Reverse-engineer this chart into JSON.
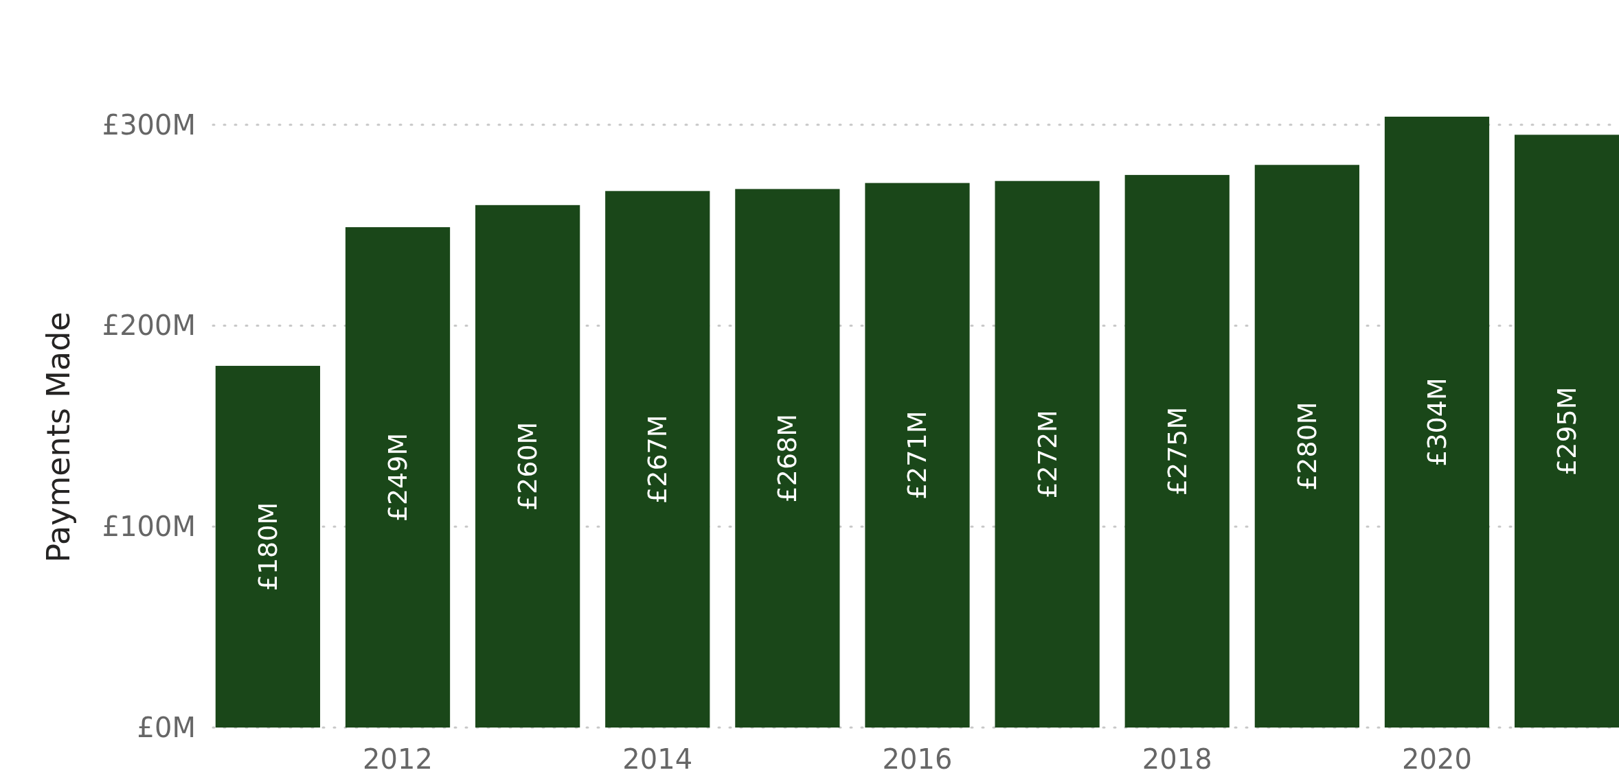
{
  "chart_data": {
    "type": "bar",
    "ylabel": "Payments Made",
    "categories": [
      null,
      "2012",
      null,
      "2014",
      null,
      "2016",
      null,
      "2018",
      null,
      "2020",
      null
    ],
    "values": [
      180,
      249,
      260,
      267,
      268,
      271,
      272,
      275,
      280,
      304,
      295
    ],
    "value_labels": [
      "£180M",
      "£249M",
      "£260M",
      "£267M",
      "£268M",
      "£271M",
      "£272M",
      "£275M",
      "£280M",
      "£304M",
      "£295M"
    ],
    "color": "#1a4719",
    "ylim": [
      0,
      304
    ],
    "yticks": [
      {
        "value": 0,
        "label": "£0M"
      },
      {
        "value": 100,
        "label": "£100M"
      },
      {
        "value": 200,
        "label": "£200M"
      },
      {
        "value": 300,
        "label": "£300M"
      }
    ],
    "grid": "y"
  }
}
